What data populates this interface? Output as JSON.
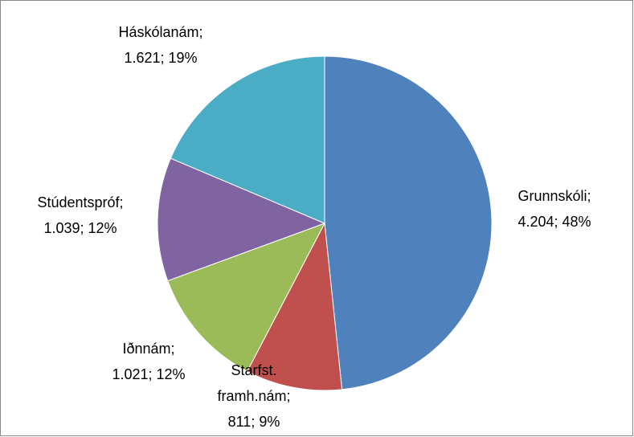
{
  "chart_data": {
    "type": "pie",
    "categories": [
      "Grunnskóli",
      "Starfst. framh.nám",
      "Iðnnám",
      "Stúdentspróf",
      "Háskólanám"
    ],
    "values": [
      4204,
      811,
      1021,
      1039,
      1621
    ],
    "value_labels": [
      "4.204",
      "811",
      "1.021",
      "1.039",
      "1.621"
    ],
    "percent_labels": [
      "48%",
      "9%",
      "12%",
      "12%",
      "19%"
    ],
    "label_separator": ";",
    "colors": [
      "#4f81bd",
      "#c0504d",
      "#9bbb59",
      "#8064a2",
      "#4bacc6"
    ]
  }
}
